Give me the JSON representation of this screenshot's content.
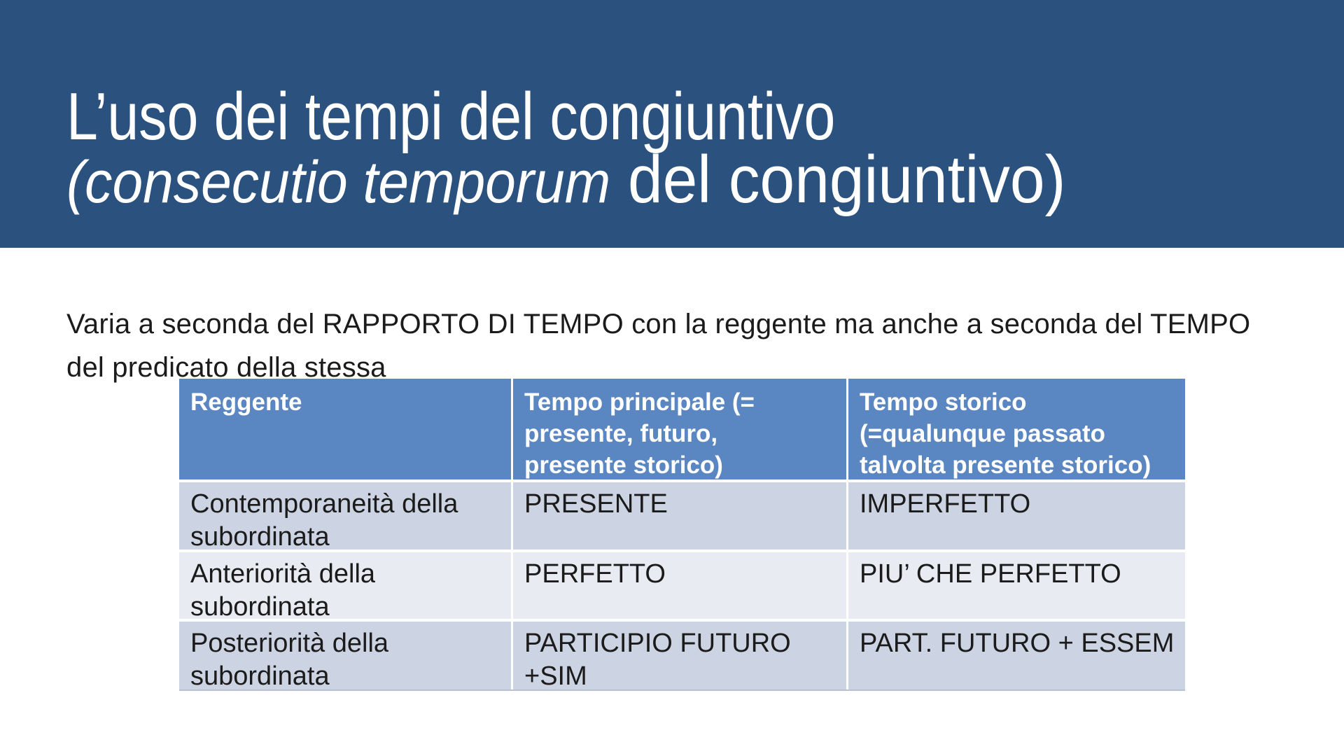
{
  "colors": {
    "title_bg": "#2B517F",
    "title_text": "#FFFFFF",
    "table_header_bg": "#5A86C2",
    "table_header_text": "#FFFFFF",
    "row_odd_bg": "#CCD3E2",
    "row_even_bg": "#E9EBF2",
    "body_text": "#1B1B1B"
  },
  "title": {
    "line1": "L’uso dei tempi del congiuntivo",
    "line2_italic": "(consecutio temporum",
    "line2_regular": " del congiuntivo)"
  },
  "intro": {
    "text": "Varia a seconda del RAPPORTO DI TEMPO con la reggente ma anche a seconda del TEMPO del predicato della stessa"
  },
  "table": {
    "headers": [
      {
        "lines": [
          "Reggente"
        ]
      },
      {
        "lines": [
          "Tempo principale (=",
          "presente, futuro,",
          "presente storico)"
        ]
      },
      {
        "lines": [
          "Tempo storico",
          "(=qualunque passato",
          "talvolta presente storico)"
        ]
      }
    ],
    "rows": [
      {
        "label_lines": [
          "Contemporaneità della",
          "subordinata"
        ],
        "principale": "PRESENTE",
        "storico": "IMPERFETTO"
      },
      {
        "label_lines": [
          "Anteriorità della",
          "subordinata"
        ],
        "principale": "PERFETTO",
        "storico": "PIU’ CHE PERFETTO"
      },
      {
        "label_lines": [
          "Posteriorità della",
          "subordinata"
        ],
        "principale": "PARTICIPIO FUTURO +SIM",
        "storico": "PART. FUTURO + ESSEM"
      }
    ]
  }
}
